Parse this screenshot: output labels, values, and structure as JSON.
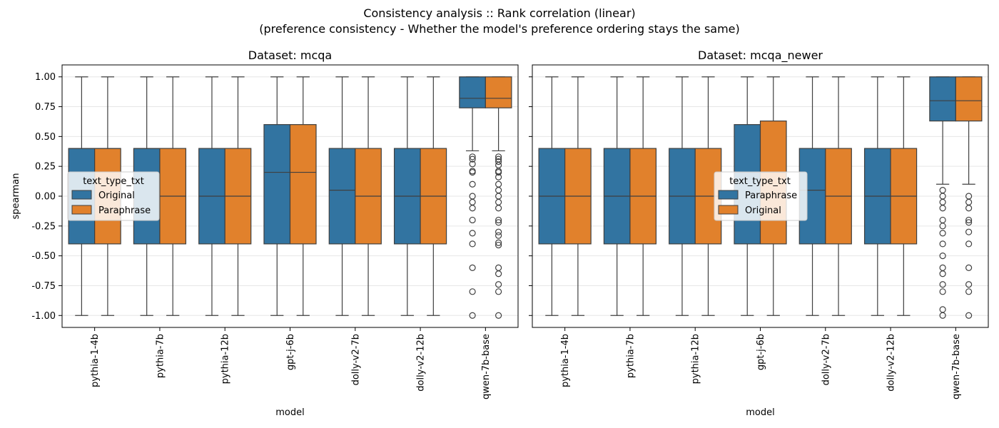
{
  "figure": {
    "title_line1": "Consistency analysis :: Rank correlation (linear)",
    "title_line2": "(preference consistency - Whether the model's preference ordering stays the same)"
  },
  "colors": {
    "blue": "#3274a1",
    "orange": "#e1812c",
    "whisker": "#3f3f3f",
    "grid": "#e6e6e6"
  },
  "chart_data": [
    {
      "type": "box",
      "title": "Dataset: mcqa",
      "xlabel": "model",
      "ylabel": "spearman",
      "ylim": [
        -1.1,
        1.1
      ],
      "yticks": [
        "1.00",
        "0.75",
        "0.50",
        "0.25",
        "0.00",
        "-0.25",
        "-0.50",
        "-0.75",
        "-1.00"
      ],
      "ytick_values": [
        1.0,
        0.75,
        0.5,
        0.25,
        0.0,
        -0.25,
        -0.5,
        -0.75,
        -1.0
      ],
      "grid": "horizontal",
      "legend": {
        "title": "text_type_txt",
        "placement": "center-left",
        "entries": [
          "Original",
          "Paraphrase"
        ]
      },
      "categories": [
        "pythia-1-4b",
        "pythia-7b",
        "pythia-12b",
        "gpt-j-6b",
        "dolly-v2-7b",
        "dolly-v2-12b",
        "qwen-7b-base"
      ],
      "series": [
        {
          "name": "Original",
          "color": "blue",
          "boxes": [
            {
              "whislo": -1.0,
              "q1": -0.4,
              "med": 0.4,
              "q3": 0.4,
              "whishi": 1.0,
              "fliers": []
            },
            {
              "whislo": -1.0,
              "q1": -0.4,
              "med": 0.4,
              "q3": 0.4,
              "whishi": 1.0,
              "fliers": []
            },
            {
              "whislo": -1.0,
              "q1": -0.4,
              "med": 0.0,
              "q3": 0.4,
              "whishi": 1.0,
              "fliers": []
            },
            {
              "whislo": -1.0,
              "q1": -0.4,
              "med": 0.2,
              "q3": 0.6,
              "whishi": 1.0,
              "fliers": []
            },
            {
              "whislo": -1.0,
              "q1": -0.4,
              "med": 0.05,
              "q3": 0.4,
              "whishi": 1.0,
              "fliers": []
            },
            {
              "whislo": -1.0,
              "q1": -0.4,
              "med": 0.0,
              "q3": 0.4,
              "whishi": 1.0,
              "fliers": []
            },
            {
              "whislo": 0.38,
              "q1": 0.74,
              "med": 0.82,
              "q3": 1.0,
              "whishi": 1.0,
              "fliers": [
                0.33,
                0.31,
                0.27,
                0.2,
                0.21,
                0.1,
                0.0,
                -0.05,
                -0.1,
                -0.2,
                -0.31,
                -0.4,
                -0.6,
                -0.8,
                -1.0
              ]
            }
          ]
        },
        {
          "name": "Paraphrase",
          "color": "orange",
          "boxes": [
            {
              "whislo": -1.0,
              "q1": -0.4,
              "med": 0.4,
              "q3": 0.4,
              "whishi": 1.0,
              "fliers": []
            },
            {
              "whislo": -1.0,
              "q1": -0.4,
              "med": 0.0,
              "q3": 0.4,
              "whishi": 1.0,
              "fliers": []
            },
            {
              "whislo": -1.0,
              "q1": -0.4,
              "med": 0.0,
              "q3": 0.4,
              "whishi": 1.0,
              "fliers": []
            },
            {
              "whislo": -1.0,
              "q1": -0.4,
              "med": 0.2,
              "q3": 0.6,
              "whishi": 1.0,
              "fliers": []
            },
            {
              "whislo": -1.0,
              "q1": -0.4,
              "med": 0.0,
              "q3": 0.4,
              "whishi": 1.0,
              "fliers": []
            },
            {
              "whislo": -1.0,
              "q1": -0.4,
              "med": 0.0,
              "q3": 0.4,
              "whishi": 1.0,
              "fliers": []
            },
            {
              "whislo": 0.38,
              "q1": 0.74,
              "med": 0.82,
              "q3": 1.0,
              "whishi": 1.0,
              "fliers": [
                0.33,
                0.31,
                0.29,
                0.26,
                0.2,
                0.21,
                0.16,
                0.1,
                0.05,
                0.0,
                -0.05,
                -0.1,
                -0.2,
                -0.22,
                -0.3,
                -0.33,
                -0.39,
                -0.41,
                -0.6,
                -0.65,
                -0.74,
                -0.8,
                -1.0
              ]
            }
          ]
        }
      ]
    },
    {
      "type": "box",
      "title": "Dataset: mcqa_newer",
      "xlabel": "model",
      "ylabel": "",
      "ylim": [
        -1.1,
        1.1
      ],
      "yticks": [],
      "ytick_values": [
        1.0,
        0.75,
        0.5,
        0.25,
        0.0,
        -0.25,
        -0.5,
        -0.75,
        -1.0
      ],
      "grid": "horizontal",
      "legend": {
        "title": "text_type_txt",
        "placement": "center",
        "entries": [
          "Paraphrase",
          "Original"
        ]
      },
      "categories": [
        "pythia-1-4b",
        "pythia-7b",
        "pythia-12b",
        "gpt-j-6b",
        "dolly-v2-7b",
        "dolly-v2-12b",
        "qwen-7b-base"
      ],
      "series": [
        {
          "name": "Paraphrase",
          "color": "blue",
          "boxes": [
            {
              "whislo": -1.0,
              "q1": -0.4,
              "med": 0.0,
              "q3": 0.4,
              "whishi": 1.0,
              "fliers": []
            },
            {
              "whislo": -1.0,
              "q1": -0.4,
              "med": 0.0,
              "q3": 0.4,
              "whishi": 1.0,
              "fliers": []
            },
            {
              "whislo": -1.0,
              "q1": -0.4,
              "med": 0.0,
              "q3": 0.4,
              "whishi": 1.0,
              "fliers": []
            },
            {
              "whislo": -1.0,
              "q1": -0.4,
              "med": 0.2,
              "q3": 0.6,
              "whishi": 1.0,
              "fliers": []
            },
            {
              "whislo": -1.0,
              "q1": -0.4,
              "med": 0.05,
              "q3": 0.4,
              "whishi": 1.0,
              "fliers": []
            },
            {
              "whislo": -1.0,
              "q1": -0.4,
              "med": 0.0,
              "q3": 0.4,
              "whishi": 1.0,
              "fliers": []
            },
            {
              "whislo": 0.1,
              "q1": 0.63,
              "med": 0.8,
              "q3": 1.0,
              "whishi": 1.0,
              "fliers": [
                0.05,
                0.0,
                -0.05,
                -0.1,
                -0.2,
                -0.25,
                -0.31,
                -0.4,
                -0.5,
                -0.6,
                -0.65,
                -0.74,
                -0.8,
                -0.95,
                -1.0
              ]
            }
          ]
        },
        {
          "name": "Original",
          "color": "orange",
          "boxes": [
            {
              "whislo": -1.0,
              "q1": -0.4,
              "med": 0.0,
              "q3": 0.4,
              "whishi": 1.0,
              "fliers": []
            },
            {
              "whislo": -1.0,
              "q1": -0.4,
              "med": 0.0,
              "q3": 0.4,
              "whishi": 1.0,
              "fliers": []
            },
            {
              "whislo": -1.0,
              "q1": -0.4,
              "med": 0.0,
              "q3": 0.4,
              "whishi": 1.0,
              "fliers": []
            },
            {
              "whislo": -1.0,
              "q1": -0.4,
              "med": 0.2,
              "q3": 0.63,
              "whishi": 1.0,
              "fliers": []
            },
            {
              "whislo": -1.0,
              "q1": -0.4,
              "med": 0.0,
              "q3": 0.4,
              "whishi": 1.0,
              "fliers": []
            },
            {
              "whislo": -1.0,
              "q1": -0.4,
              "med": 0.0,
              "q3": 0.4,
              "whishi": 1.0,
              "fliers": []
            },
            {
              "whislo": 0.1,
              "q1": 0.63,
              "med": 0.8,
              "q3": 1.0,
              "whishi": 1.0,
              "fliers": [
                0.0,
                -0.05,
                -0.1,
                -0.2,
                -0.22,
                -0.3,
                -0.4,
                -0.6,
                -0.74,
                -0.8,
                -1.0
              ]
            }
          ]
        }
      ]
    }
  ]
}
